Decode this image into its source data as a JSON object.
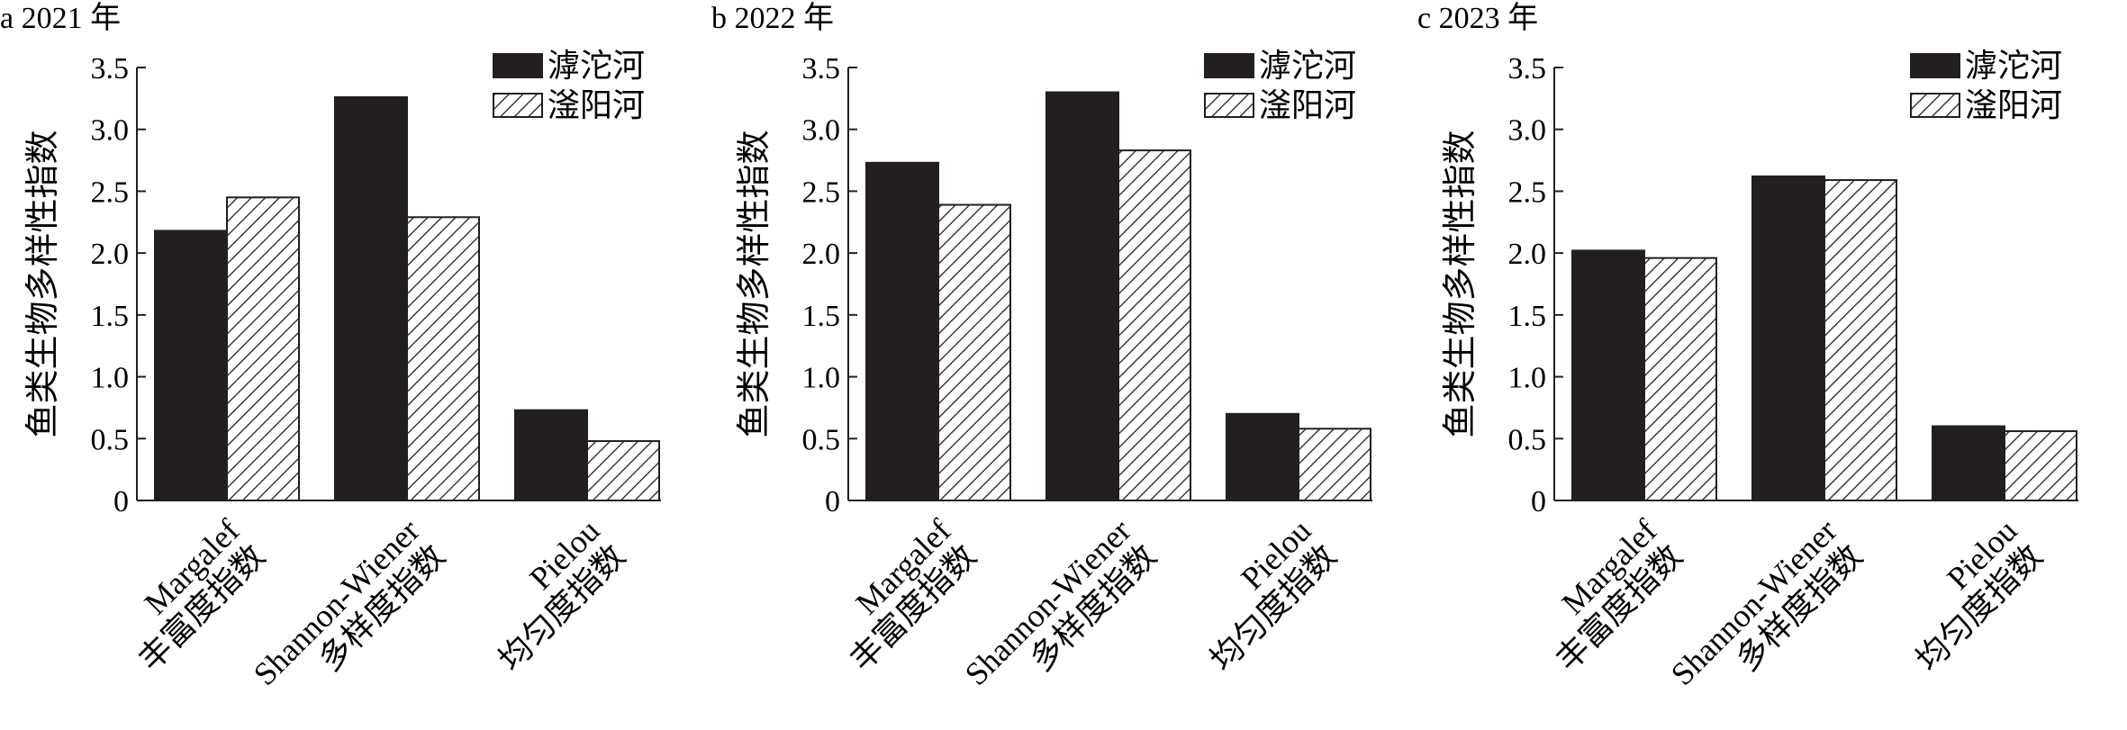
{
  "chart_data": [
    {
      "type": "bar",
      "title": "a 2021 年",
      "ylabel": "鱼类生物多样性指数",
      "ylim": [
        0,
        3.5
      ],
      "yticks": [
        "0",
        "0.5",
        "1.0",
        "1.5",
        "2.0",
        "2.5",
        "3.0",
        "3.5"
      ],
      "categories": [
        [
          "Margalef",
          "丰富度指数"
        ],
        [
          "Shannon-Wiener",
          "多样度指数"
        ],
        [
          "Pielou",
          "均匀度指数"
        ]
      ],
      "series": [
        {
          "name": "滹沱河",
          "fill": "#231f20",
          "pattern": "solid",
          "values": [
            2.18,
            3.26,
            0.73
          ]
        },
        {
          "name": "滏阳河",
          "fill": "#ffffff",
          "pattern": "hatch",
          "values": [
            2.45,
            2.29,
            0.48
          ]
        }
      ],
      "legend": "top-right",
      "grid": false
    },
    {
      "type": "bar",
      "title": "b 2022 年",
      "ylabel": "鱼类生物多样性指数",
      "ylim": [
        0,
        3.5
      ],
      "yticks": [
        "0",
        "0.5",
        "1.0",
        "1.5",
        "2.0",
        "2.5",
        "3.0",
        "3.5"
      ],
      "categories": [
        [
          "Margalef",
          "丰富度指数"
        ],
        [
          "Shannon-Wiener",
          "多样度指数"
        ],
        [
          "Pielou",
          "均匀度指数"
        ]
      ],
      "series": [
        {
          "name": "滹沱河",
          "fill": "#231f20",
          "pattern": "solid",
          "values": [
            2.73,
            3.3,
            0.7
          ]
        },
        {
          "name": "滏阳河",
          "fill": "#ffffff",
          "pattern": "hatch",
          "values": [
            2.39,
            2.83,
            0.58
          ]
        }
      ],
      "legend": "top-right",
      "grid": false
    },
    {
      "type": "bar",
      "title": "c 2023 年",
      "ylabel": "鱼类生物多样性指数",
      "ylim": [
        0,
        3.5
      ],
      "yticks": [
        "0",
        "0.5",
        "1.0",
        "1.5",
        "2.0",
        "2.5",
        "3.0",
        "3.5"
      ],
      "categories": [
        [
          "Margalef",
          "丰富度指数"
        ],
        [
          "Shannon-Wiener",
          "多样度指数"
        ],
        [
          "Pielou",
          "均匀度指数"
        ]
      ],
      "series": [
        {
          "name": "滹沱河",
          "fill": "#231f20",
          "pattern": "solid",
          "values": [
            2.02,
            2.62,
            0.6
          ]
        },
        {
          "name": "滏阳河",
          "fill": "#ffffff",
          "pattern": "hatch",
          "values": [
            1.96,
            2.59,
            0.56
          ]
        }
      ],
      "legend": "top-right",
      "grid": false
    }
  ]
}
